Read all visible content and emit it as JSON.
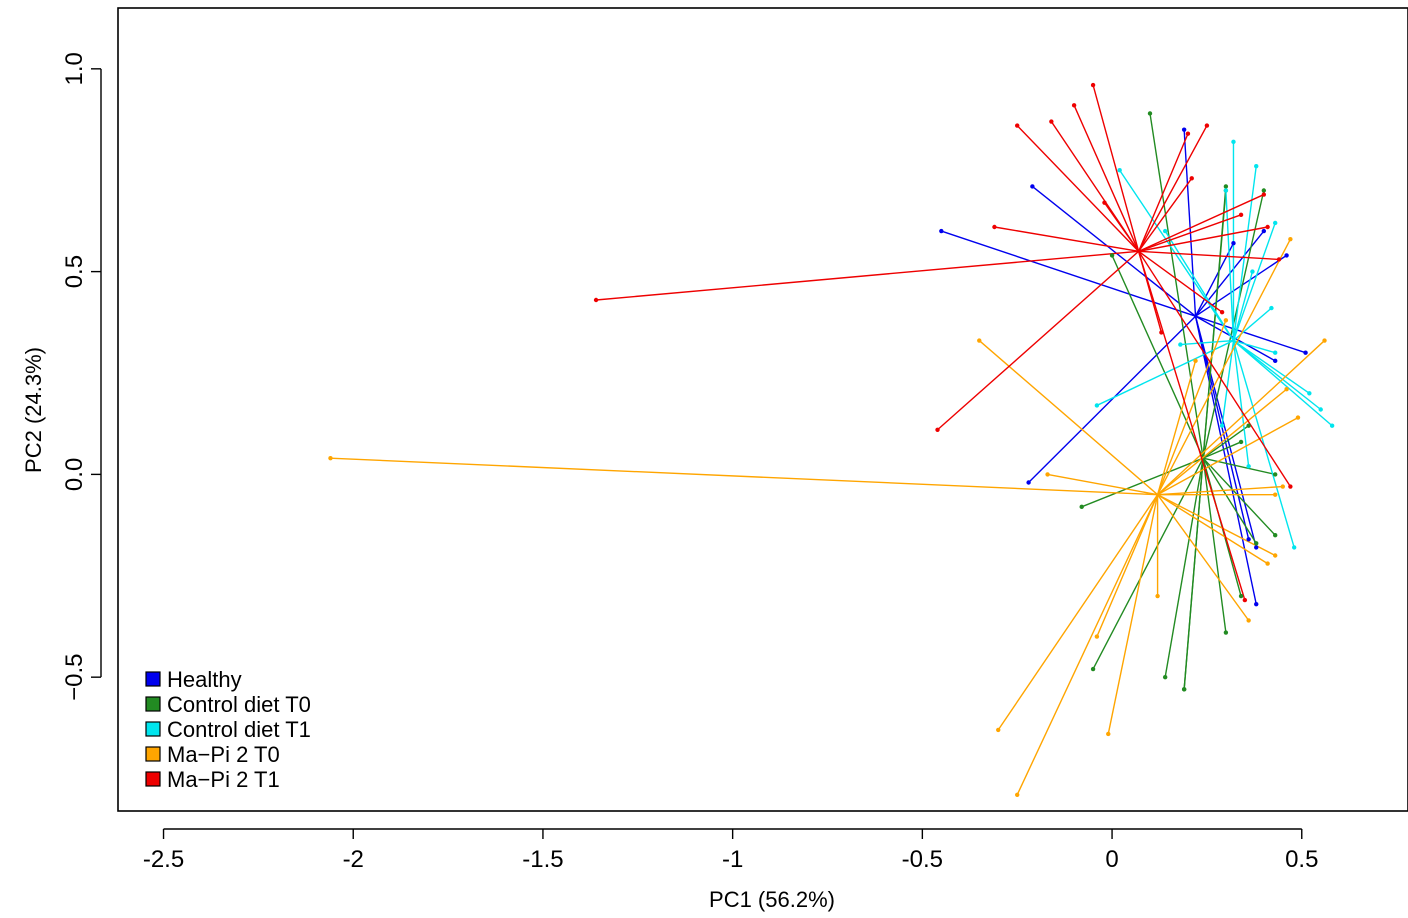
{
  "chart_data": {
    "type": "scatter",
    "title": "",
    "xlabel": "PC1 (56.2%)",
    "ylabel": "PC2 (24.3%)",
    "xlim": [
      -2.62,
      0.78
    ],
    "ylim": [
      -0.83,
      1.15
    ],
    "x_ticks": [
      -2.5,
      -2,
      -1.5,
      -1,
      -0.5,
      0,
      0.5
    ],
    "x_tick_labels": [
      "-2.5",
      "-2",
      "-1.5",
      "-1",
      "-0.5",
      "0",
      "0.5"
    ],
    "y_ticks": [
      -0.5,
      0.0,
      0.5,
      1.0
    ],
    "y_tick_labels": [
      "−0.5",
      "0.0",
      "0.5",
      "1.0"
    ],
    "grid": false,
    "legend_position": "bottom-left",
    "series": [
      {
        "name": "Healthy",
        "color": "#0000ee",
        "centroid": [
          0.22,
          0.39
        ],
        "points": [
          [
            -0.45,
            0.6
          ],
          [
            -0.21,
            0.71
          ],
          [
            0.19,
            0.85
          ],
          [
            0.4,
            0.6
          ],
          [
            0.46,
            0.54
          ],
          [
            0.32,
            0.57
          ],
          [
            0.51,
            0.3
          ],
          [
            0.43,
            0.28
          ],
          [
            -0.22,
            -0.02
          ],
          [
            0.36,
            -0.16
          ],
          [
            0.38,
            -0.32
          ],
          [
            0.38,
            -0.18
          ]
        ]
      },
      {
        "name": "Control diet T0",
        "color": "#228b22",
        "centroid": [
          0.24,
          0.04
        ],
        "points": [
          [
            0.1,
            0.89
          ],
          [
            0.3,
            0.71
          ],
          [
            0.4,
            0.7
          ],
          [
            0.0,
            0.54
          ],
          [
            0.3,
            0.7
          ],
          [
            0.43,
            0.0
          ],
          [
            0.43,
            -0.15
          ],
          [
            0.36,
            0.12
          ],
          [
            0.34,
            0.08
          ],
          [
            -0.08,
            -0.08
          ],
          [
            -0.05,
            -0.48
          ],
          [
            0.14,
            -0.5
          ],
          [
            0.19,
            -0.53
          ],
          [
            0.19,
            -0.53
          ],
          [
            0.3,
            -0.39
          ],
          [
            0.34,
            -0.3
          ],
          [
            0.38,
            -0.17
          ]
        ]
      },
      {
        "name": "Control diet T1",
        "color": "#00e5ee",
        "centroid": [
          0.32,
          0.33
        ],
        "points": [
          [
            0.02,
            0.75
          ],
          [
            0.32,
            0.82
          ],
          [
            0.38,
            0.76
          ],
          [
            0.43,
            0.62
          ],
          [
            0.3,
            0.7
          ],
          [
            0.14,
            0.6
          ],
          [
            0.37,
            0.5
          ],
          [
            0.42,
            0.41
          ],
          [
            0.43,
            0.3
          ],
          [
            0.52,
            0.2
          ],
          [
            0.55,
            0.16
          ],
          [
            0.58,
            0.12
          ],
          [
            0.48,
            -0.18
          ],
          [
            0.36,
            0.02
          ],
          [
            0.29,
            0.12
          ],
          [
            -0.04,
            0.17
          ],
          [
            0.18,
            0.32
          ]
        ]
      },
      {
        "name": "Ma−Pi 2 T0",
        "color": "#ffa500",
        "centroid": [
          0.12,
          -0.05
        ],
        "points": [
          [
            -2.06,
            0.04
          ],
          [
            -0.35,
            0.33
          ],
          [
            -0.17,
            0.0
          ],
          [
            -0.3,
            -0.63
          ],
          [
            -0.25,
            -0.79
          ],
          [
            -0.01,
            -0.64
          ],
          [
            -0.04,
            -0.4
          ],
          [
            0.12,
            -0.3
          ],
          [
            0.36,
            -0.36
          ],
          [
            0.43,
            -0.2
          ],
          [
            0.41,
            -0.22
          ],
          [
            0.43,
            -0.05
          ],
          [
            0.45,
            -0.03
          ],
          [
            0.49,
            0.14
          ],
          [
            0.56,
            0.33
          ],
          [
            0.46,
            0.21
          ],
          [
            0.47,
            0.58
          ],
          [
            0.3,
            0.38
          ],
          [
            0.22,
            0.28
          ]
        ]
      },
      {
        "name": "Ma−Pi 2 T1",
        "color": "#ee0000",
        "centroid": [
          0.07,
          0.55
        ],
        "points": [
          [
            -1.36,
            0.43
          ],
          [
            -0.46,
            0.11
          ],
          [
            -0.31,
            0.61
          ],
          [
            -0.25,
            0.86
          ],
          [
            -0.16,
            0.87
          ],
          [
            -0.1,
            0.91
          ],
          [
            -0.05,
            0.96
          ],
          [
            -0.02,
            0.67
          ],
          [
            0.2,
            0.84
          ],
          [
            0.21,
            0.73
          ],
          [
            0.25,
            0.86
          ],
          [
            0.4,
            0.69
          ],
          [
            0.41,
            0.61
          ],
          [
            0.34,
            0.64
          ],
          [
            0.44,
            0.53
          ],
          [
            0.47,
            -0.03
          ],
          [
            0.35,
            -0.31
          ],
          [
            0.13,
            0.35
          ],
          [
            0.29,
            0.4
          ]
        ]
      }
    ]
  }
}
